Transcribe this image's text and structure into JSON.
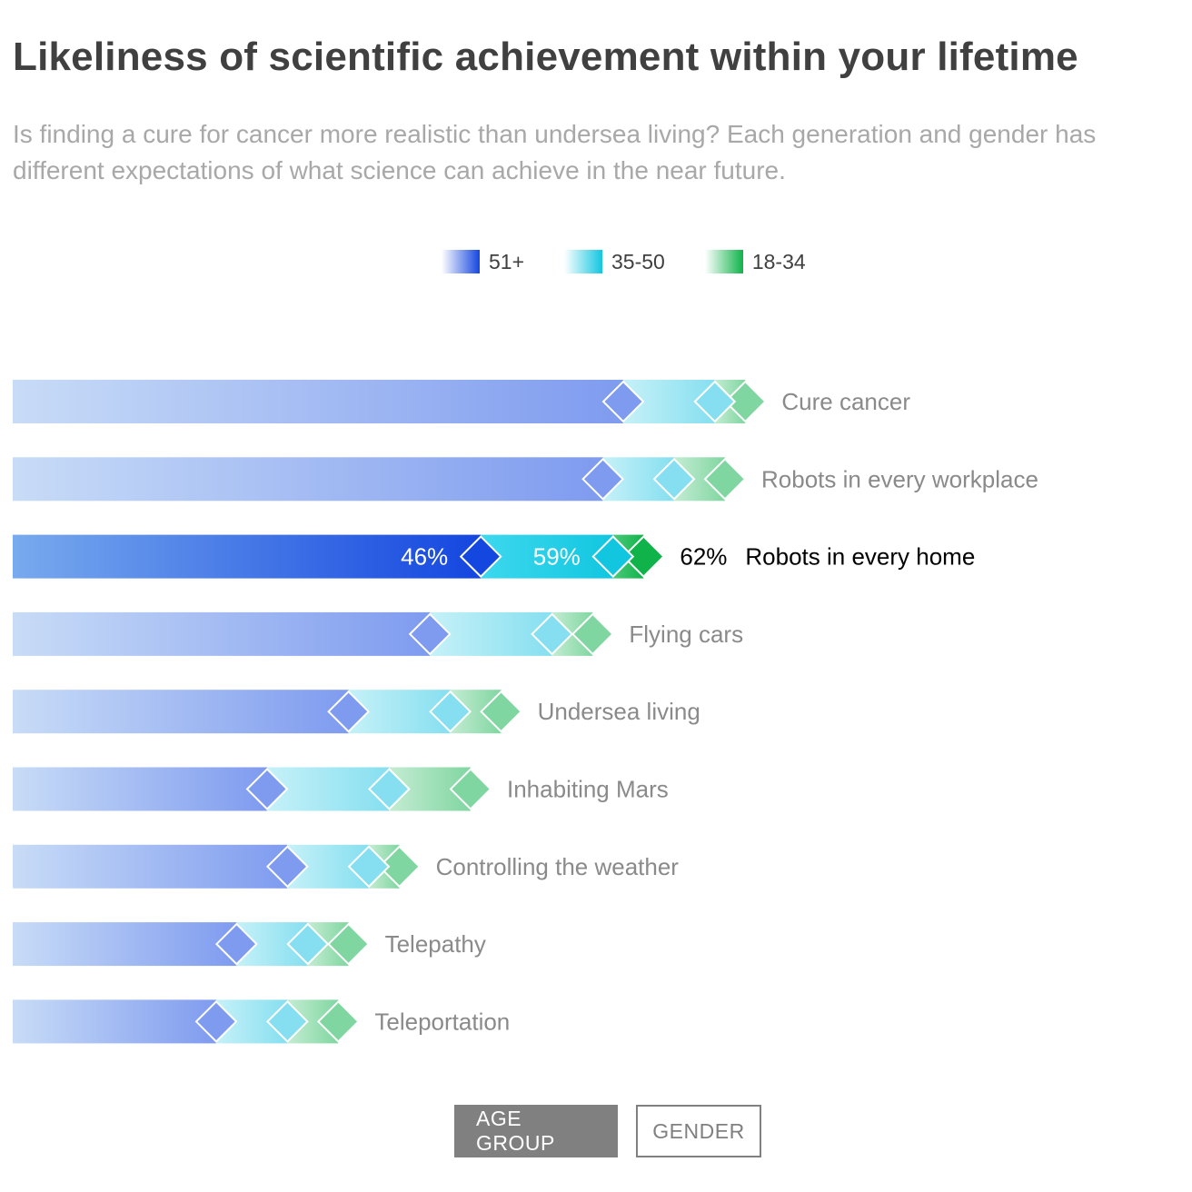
{
  "header": {
    "title": "Likeliness of scientific achievement within your lifetime",
    "subtitle": "Is finding a cure for cancer more realistic than undersea living? Each generation and gender has different expectations of what science can achieve in the near future."
  },
  "legend": [
    {
      "label": "51+",
      "color_light": "#ffffff",
      "color": "#1446e0"
    },
    {
      "label": "35-50",
      "color_light": "#ffffff",
      "color": "#12c6e0"
    },
    {
      "label": "18-34",
      "color_light": "#ffffff",
      "color": "#0fb34a"
    }
  ],
  "colors": {
    "series_51": "#1446e0",
    "series_35": "#12c6e0",
    "series_18": "#0fb34a",
    "label_muted": "#8a8a8a",
    "label_active": "#000000"
  },
  "toggle": {
    "age_group": "AGE GROUP",
    "gender": "GENDER"
  },
  "chart_data": {
    "type": "bar",
    "title": "Likeliness of scientific achievement within your lifetime",
    "xlim": [
      0,
      100
    ],
    "highlighted_category": "Robots in every home",
    "categories": [
      "Cure cancer",
      "Robots in every workplace",
      "Robots in every home",
      "Flying cars",
      "Undersea living",
      "Inhabiting Mars",
      "Controlling the weather",
      "Telepathy",
      "Teleportation"
    ],
    "series": [
      {
        "name": "51+",
        "values": [
          60,
          58,
          46,
          41,
          33,
          25,
          27,
          22,
          20
        ]
      },
      {
        "name": "35-50",
        "values": [
          69,
          65,
          59,
          53,
          43,
          37,
          35,
          29,
          27
        ]
      },
      {
        "name": "18-34",
        "values": [
          72,
          70,
          62,
          57,
          48,
          45,
          38,
          33,
          32
        ]
      }
    ],
    "highlight_labels": {
      "51+": "46%",
      "35-50": "59%",
      "18-34": "62%"
    }
  }
}
